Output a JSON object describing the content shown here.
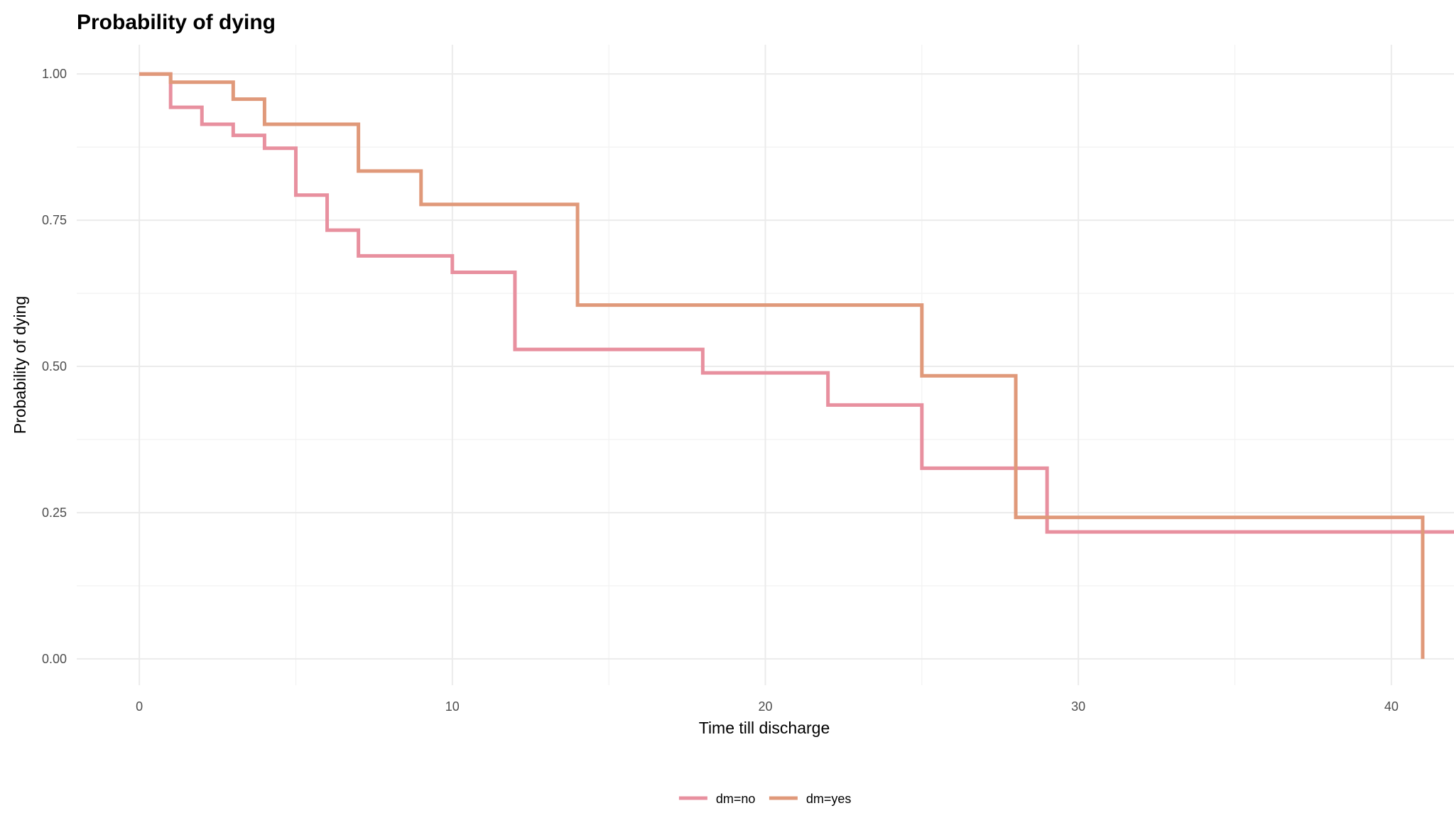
{
  "chart_data": {
    "type": "line",
    "subtype": "step",
    "title": "Probability of dying",
    "xlabel": "Time till discharge",
    "ylabel": "Probability of dying",
    "xlim": [
      -2,
      42
    ],
    "ylim": [
      -0.045,
      1.05
    ],
    "x_ticks": [
      0,
      10,
      20,
      30,
      40
    ],
    "x_tick_labels": [
      "0",
      "10",
      "20",
      "30",
      "40"
    ],
    "y_ticks": [
      0,
      0.25,
      0.5,
      0.75,
      1
    ],
    "y_tick_labels": [
      "0.00",
      "0.25",
      "0.50",
      "0.75",
      "1.00"
    ],
    "x_minor_ticks": [
      5,
      15,
      25,
      35
    ],
    "y_minor_ticks": [
      0.125,
      0.375,
      0.625,
      0.875
    ],
    "grid": true,
    "legend_position": "bottom",
    "series": [
      {
        "name": "dm=no",
        "color": "#E8909F",
        "x": [
          0,
          1,
          2,
          3,
          4,
          5,
          6,
          7,
          10,
          12,
          18,
          22,
          25,
          29,
          42
        ],
        "y": [
          1.0,
          0.943,
          0.914,
          0.895,
          0.873,
          0.793,
          0.733,
          0.689,
          0.661,
          0.529,
          0.489,
          0.434,
          0.326,
          0.217,
          0.217
        ]
      },
      {
        "name": "dm=yes",
        "color": "#E0997A",
        "x": [
          0,
          1,
          3,
          4,
          7,
          9,
          14,
          25,
          28,
          41
        ],
        "y": [
          1.0,
          0.986,
          0.957,
          0.914,
          0.834,
          0.777,
          0.605,
          0.484,
          0.242,
          0.0
        ]
      }
    ]
  }
}
